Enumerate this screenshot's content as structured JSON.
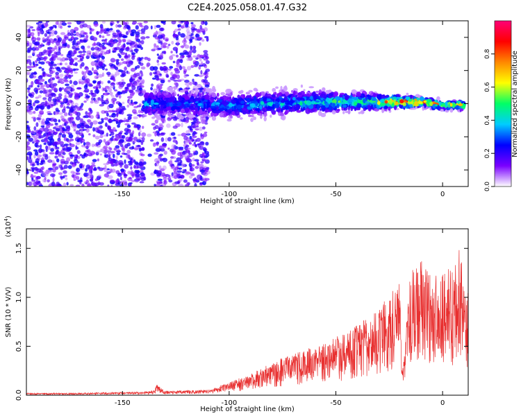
{
  "chart_data": [
    {
      "type": "heatmap",
      "title": "C2E4.2025.058.01.47.G32",
      "xlabel": "Height of straight line (km)",
      "ylabel": "Frequency (Hz)",
      "xlim": [
        -195,
        12
      ],
      "ylim": [
        -50,
        50
      ],
      "xticks": [
        -150,
        -100,
        -50,
        0
      ],
      "yticks": [
        -40,
        -20,
        0,
        20,
        40
      ],
      "grid": false,
      "colorbar": {
        "label": "Normalized spectral amplitude",
        "range": [
          0,
          1
        ],
        "ticks": [
          "0.0",
          "0.2",
          "0.4",
          "0.6",
          "0.8"
        ],
        "colors": [
          "#ffffff",
          "#7a00ff",
          "#0000ff",
          "#00ccff",
          "#00ff66",
          "#ffff00",
          "#ff8800",
          "#ff0000",
          "#ff0077"
        ]
      },
      "noise_region": {
        "x_from": -195,
        "x_to": -110,
        "frequency_spread": [
          -50,
          50
        ],
        "typical_amplitude": 0.15
      },
      "signal_trace": [
        {
          "x": -140,
          "frequency": 0,
          "amplitude": 0.35,
          "spread": 4
        },
        {
          "x": -120,
          "frequency": 0,
          "amplitude": 0.3,
          "spread": 4
        },
        {
          "x": -100,
          "frequency": -1,
          "amplitude": 0.35,
          "spread": 4
        },
        {
          "x": -80,
          "frequency": 0,
          "amplitude": 0.4,
          "spread": 4
        },
        {
          "x": -60,
          "frequency": 1,
          "amplitude": 0.45,
          "spread": 3.5
        },
        {
          "x": -40,
          "frequency": 1,
          "amplitude": 0.5,
          "spread": 3
        },
        {
          "x": -20,
          "frequency": 1,
          "amplitude": 0.8,
          "spread": 2
        },
        {
          "x": -10,
          "frequency": 1,
          "amplitude": 0.95,
          "spread": 1.5
        },
        {
          "x": 0,
          "frequency": -1,
          "amplitude": 0.6,
          "spread": 1.5
        },
        {
          "x": 10,
          "frequency": -1,
          "amplitude": 0.7,
          "spread": 1.5
        }
      ]
    },
    {
      "type": "line",
      "title": "",
      "xlabel": "Height of straight line (km)",
      "ylabel": "SNR (10 * V/V)",
      "y_multiplier": "(x10",
      "y_multiplier_exp": "4",
      "xlim": [
        -195,
        12
      ],
      "ylim": [
        0,
        1.7
      ],
      "xticks": [
        -150,
        -100,
        -50,
        0
      ],
      "yticks": [
        "0.0",
        "0.5",
        "1.0",
        "1.5"
      ],
      "grid": false,
      "series": [
        {
          "color": "#e83030",
          "envelope": {
            "x": [
              -195,
              -170,
              -150,
              -140,
              -135,
              -134,
              -130,
              -110,
              -100,
              -90,
              -80,
              -70,
              -60,
              -50,
              -40,
              -30,
              -25,
              -20,
              -19,
              -15,
              -10,
              -5,
              0,
              5,
              8,
              10,
              12
            ],
            "y": [
              0.02,
              0.02,
              0.03,
              0.03,
              0.05,
              0.1,
              0.04,
              0.05,
              0.12,
              0.2,
              0.3,
              0.4,
              0.45,
              0.55,
              0.65,
              0.8,
              0.95,
              1.05,
              0.2,
              1.15,
              1.25,
              1.1,
              1.15,
              1.2,
              1.4,
              1.1,
              1.0
            ]
          }
        }
      ]
    }
  ]
}
